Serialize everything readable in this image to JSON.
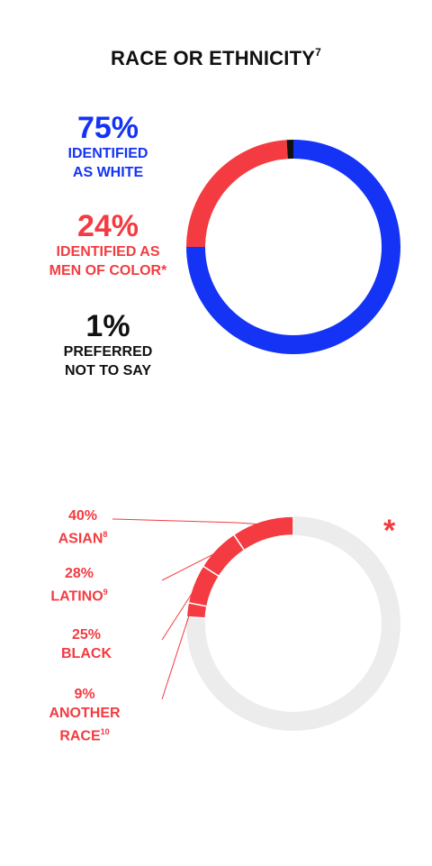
{
  "header": {
    "title": "RACE OR ETHNICITY",
    "title_sup": "7"
  },
  "stats": {
    "white": {
      "pct": "75%",
      "line1": "IDENTIFIED",
      "line2": "AS WHITE"
    },
    "color": {
      "pct": "24%",
      "line1": "IDENTIFIED AS",
      "line2": "MEN OF COLOR*"
    },
    "none": {
      "pct": "1%",
      "line1": "PREFERRED",
      "line2": "NOT TO SAY"
    }
  },
  "breakdown_labels": {
    "asian": {
      "pct": "40%",
      "name": "ASIAN",
      "sup": "8"
    },
    "latino": {
      "pct": "28%",
      "name": "LATINO",
      "sup": "9"
    },
    "black": {
      "pct": "25%",
      "name": "BLACK"
    },
    "another": {
      "pct": "9%",
      "line1": "ANOTHER",
      "line2": "RACE",
      "sup": "10"
    }
  },
  "asterisk": "*",
  "colors": {
    "blue": "#1433f5",
    "red": "#f33b41",
    "black": "#111111",
    "grey": "#ececec"
  },
  "chart_data": [
    {
      "type": "pie",
      "variant": "donut",
      "categories": [
        "Identified as white",
        "Identified as men of color",
        "Preferred not to say"
      ],
      "values": [
        75,
        24,
        1
      ],
      "colors": [
        "#1433f5",
        "#f33b41",
        "#111111"
      ]
    },
    {
      "type": "pie",
      "variant": "donut",
      "categories": [
        "Asian",
        "Latino",
        "Black",
        "Another race"
      ],
      "values": [
        40,
        28,
        25,
        9
      ],
      "scope_share_of_total": 24,
      "colors": [
        "#f33b41",
        "#f33b41",
        "#f33b41",
        "#f33b41"
      ],
      "remainder_color": "#ececec"
    }
  ]
}
